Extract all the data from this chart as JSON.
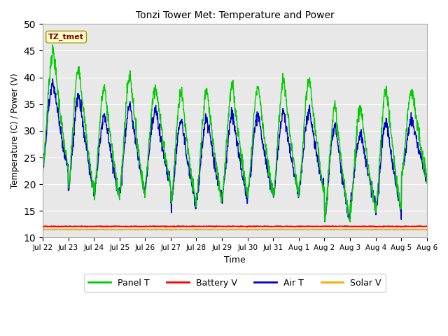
{
  "title": "Tonzi Tower Met: Temperature and Power",
  "ylabel": "Temperature (C) / Power (V)",
  "xlabel": "Time",
  "ylim": [
    10,
    50
  ],
  "annotation": "TZ_tmet",
  "annotation_color": "#8B0000",
  "annotation_bg": "#FFFFCC",
  "x_labels": [
    "Jul 22",
    "Jul 23",
    "Jul 24",
    "Jul 25",
    "Jul 26",
    "Jul 27",
    "Jul 28",
    "Jul 29",
    "Jul 30",
    "Jul 31",
    "Aug 1",
    "Aug 2",
    "Aug 3",
    "Aug 4",
    "Aug 5",
    "Aug 6"
  ],
  "bg_color": "#E8E8E8",
  "fig_bg": "#FFFFFF",
  "panel_color": "#00CC00",
  "battery_color": "#FF0000",
  "air_color": "#0000CC",
  "solar_color": "#FFA500",
  "legend_labels": [
    "Panel T",
    "Battery V",
    "Air T",
    "Solar V"
  ],
  "yticks": [
    10,
    15,
    20,
    25,
    30,
    35,
    40,
    45,
    50
  ],
  "battery_val": 12.1,
  "solar_val": 11.5
}
